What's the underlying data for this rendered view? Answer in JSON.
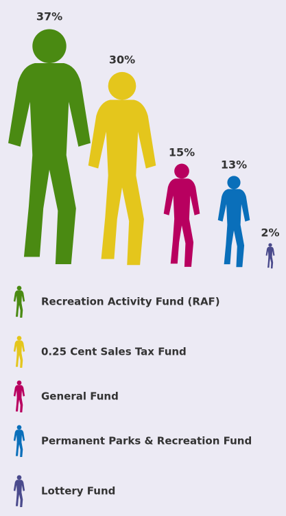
{
  "chart_data": {
    "type": "pictograph",
    "categories": [
      "Recreation Activity Fund (RAF)",
      "0.25 Cent Sales Tax Fund",
      "General Fund",
      "Permanent Parks & Recreation Fund",
      "Lottery Fund"
    ],
    "values": [
      37,
      30,
      15,
      13,
      2
    ],
    "value_labels": [
      "37%",
      "30%",
      "15%",
      "13%",
      "2%"
    ],
    "colors": [
      "#4a8a12",
      "#e4c61c",
      "#b8005f",
      "#0a6fba",
      "#4a4a8c"
    ]
  }
}
